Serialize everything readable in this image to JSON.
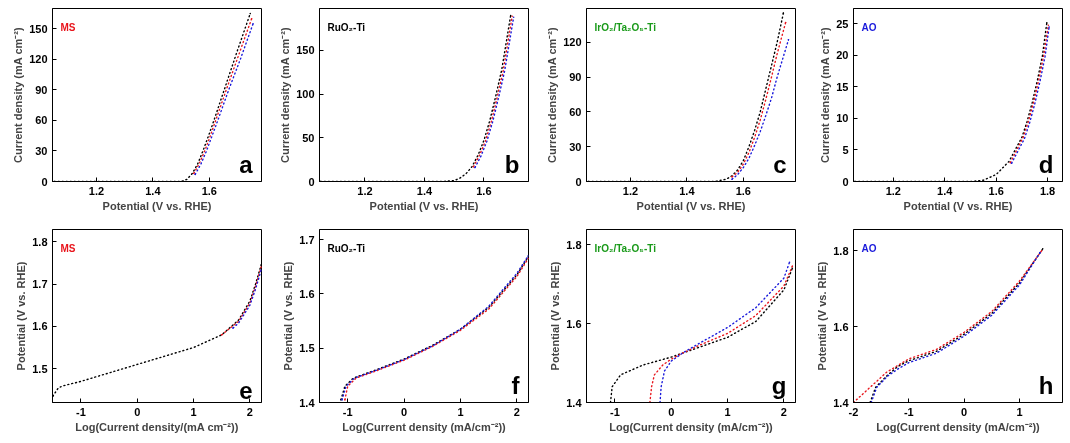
{
  "chart_data": [
    {
      "type": "line",
      "title": "MS",
      "annotations": [
        "a"
      ],
      "xlabel": "Potential (V vs. RHE)",
      "ylabel": "Current density (mA cm⁻²)",
      "xlim": [
        1.044,
        1.785
      ],
      "xticks": [
        1.2,
        1.4,
        1.6
      ],
      "ylim": [
        0,
        170
      ],
      "yticks": [
        0,
        30,
        60,
        90,
        120,
        150
      ],
      "line_style": "dotted",
      "series": [
        {
          "color": "#000000",
          "x": [
            1.05,
            1.45,
            1.5,
            1.52,
            1.54,
            1.56,
            1.58,
            1.6,
            1.62,
            1.66,
            1.7,
            1.745
          ],
          "values": [
            0,
            0,
            0,
            2,
            8,
            18,
            32,
            47,
            63,
            96,
            129,
            165
          ]
        },
        {
          "color": "#e8141b",
          "x": [
            1.545,
            1.565,
            1.585,
            1.605,
            1.625,
            1.665,
            1.705,
            1.75
          ],
          "values": [
            8,
            18,
            31,
            46,
            62,
            94,
            125,
            160
          ]
        },
        {
          "color": "#1a1adb",
          "x": [
            1.55,
            1.57,
            1.59,
            1.61,
            1.63,
            1.67,
            1.71,
            1.755
          ],
          "values": [
            7,
            17,
            30,
            45,
            60,
            91,
            120,
            155
          ]
        }
      ]
    },
    {
      "type": "line",
      "title": "RuO₂-Ti",
      "annotations": [
        "b"
      ],
      "xlabel": "Potential (V vs. RHE)",
      "ylabel": "Current density (mA cm⁻²)",
      "xlim": [
        1.047,
        1.75
      ],
      "xticks": [
        1.2,
        1.4,
        1.6
      ],
      "ylim": [
        0,
        198
      ],
      "yticks": [
        0,
        50,
        100,
        150
      ],
      "line_style": "dotted",
      "series": [
        {
          "color": "#000000",
          "x": [
            1.05,
            1.46,
            1.5,
            1.52,
            1.54,
            1.56,
            1.58,
            1.6,
            1.62,
            1.64,
            1.66,
            1.69
          ],
          "values": [
            0,
            0,
            1,
            4,
            9,
            17,
            30,
            47,
            70,
            98,
            128,
            190
          ]
        },
        {
          "color": "#e8141b",
          "x": [
            1.565,
            1.585,
            1.605,
            1.625,
            1.645,
            1.665,
            1.695
          ],
          "values": [
            17,
            30,
            46,
            69,
            97,
            127,
            189
          ]
        },
        {
          "color": "#1a1adb",
          "x": [
            1.57,
            1.59,
            1.61,
            1.63,
            1.65,
            1.67,
            1.7
          ],
          "values": [
            16,
            29,
            46,
            69,
            97,
            127,
            188
          ]
        }
      ]
    },
    {
      "type": "line",
      "title": "IrO₂/Ta₂O₅-Ti",
      "annotations": [
        "c"
      ],
      "xlabel": "Potential (V vs. RHE)",
      "ylabel": "Current density (mA cm⁻²)",
      "xlim": [
        1.044,
        1.785
      ],
      "xticks": [
        1.2,
        1.4,
        1.6
      ],
      "ylim": [
        0,
        149
      ],
      "yticks": [
        0,
        30,
        60,
        90,
        120
      ],
      "line_style": "dotted",
      "series": [
        {
          "color": "#000000",
          "x": [
            1.05,
            1.5,
            1.54,
            1.56,
            1.58,
            1.6,
            1.62,
            1.64,
            1.66,
            1.68,
            1.7,
            1.72,
            1.742
          ],
          "values": [
            0,
            0,
            2,
            5,
            10,
            18,
            30,
            44,
            60,
            80,
            100,
            120,
            145
          ]
        },
        {
          "color": "#e8141b",
          "x": [
            1.56,
            1.58,
            1.6,
            1.62,
            1.64,
            1.66,
            1.68,
            1.7,
            1.72,
            1.75
          ],
          "values": [
            4,
            8,
            15,
            25,
            38,
            53,
            71,
            90,
            110,
            137
          ]
        },
        {
          "color": "#1a1adb",
          "x": [
            1.56,
            1.58,
            1.6,
            1.62,
            1.64,
            1.66,
            1.68,
            1.7,
            1.72,
            1.76
          ],
          "values": [
            2,
            6,
            12,
            20,
            31,
            43,
            57,
            72,
            90,
            122
          ]
        }
      ]
    },
    {
      "type": "line",
      "title": "AO",
      "annotations": [
        "d"
      ],
      "xlabel": "Potential (V vs. RHE)",
      "ylabel": "Current density (mA cm⁻²)",
      "xlim": [
        1.045,
        1.858
      ],
      "xticks": [
        1.2,
        1.4,
        1.6,
        1.8
      ],
      "ylim": [
        0,
        27.45
      ],
      "yticks": [
        0,
        5,
        10,
        15,
        20,
        25
      ],
      "line_style": "dotted",
      "series": [
        {
          "color": "#000000",
          "x": [
            1.05,
            1.5,
            1.55,
            1.6,
            1.65,
            1.7,
            1.72,
            1.74,
            1.76,
            1.78,
            1.797
          ],
          "values": [
            0,
            0,
            0.2,
            1.1,
            3.2,
            7,
            9.5,
            12.5,
            16,
            20,
            25.2
          ]
        },
        {
          "color": "#e8141b",
          "x": [
            1.655,
            1.705,
            1.725,
            1.745,
            1.765,
            1.785,
            1.803
          ],
          "values": [
            3,
            7,
            9.5,
            12.5,
            16,
            20,
            24.8
          ]
        },
        {
          "color": "#1a1adb",
          "x": [
            1.66,
            1.71,
            1.73,
            1.75,
            1.77,
            1.79,
            1.806
          ],
          "values": [
            2.9,
            6.8,
            9.3,
            12.3,
            15.8,
            19.8,
            24.5
          ]
        }
      ]
    },
    {
      "type": "line",
      "title": "MS",
      "annotations": [
        "e"
      ],
      "xlabel": "Log(Current density/(mA cm⁻²))",
      "ylabel": "Potential (V vs. RHE)",
      "xlim": [
        -1.506,
        2.206
      ],
      "xticks": [
        -1,
        0,
        1,
        2
      ],
      "ylim": [
        1.42,
        1.829
      ],
      "yticks": [
        1.5,
        1.6,
        1.7,
        1.8
      ],
      "line_style": "dotted",
      "series": [
        {
          "color": "#000000",
          "x": [
            -1.5,
            -1.45,
            -1.4,
            -1.3,
            -1,
            0,
            1,
            1.5,
            1.8,
            2.0,
            2.1,
            2.2
          ],
          "values": [
            1.435,
            1.445,
            1.455,
            1.46,
            1.47,
            1.51,
            1.55,
            1.58,
            1.615,
            1.66,
            1.7,
            1.745
          ]
        },
        {
          "color": "#e8141b",
          "x": [
            1.5,
            1.8,
            2.0,
            2.1,
            2.2
          ],
          "values": [
            1.58,
            1.612,
            1.655,
            1.695,
            1.74
          ]
        },
        {
          "color": "#1a1adb",
          "x": [
            1.7,
            1.8,
            2.0,
            2.1,
            2.2
          ],
          "values": [
            1.596,
            1.608,
            1.65,
            1.688,
            1.733
          ]
        }
      ]
    },
    {
      "type": "line",
      "title": "RuO₂-Ti",
      "annotations": [
        "f"
      ],
      "xlabel": "Log(Current density (mA/cm⁻²))",
      "ylabel": "Potential (V vs. RHE)",
      "xlim": [
        -1.5,
        2.206
      ],
      "xticks": [
        -1,
        0,
        1,
        2
      ],
      "ylim": [
        1.4,
        1.7186
      ],
      "yticks": [
        1.4,
        1.5,
        1.6,
        1.7
      ],
      "line_style": "dotted",
      "series": [
        {
          "color": "#000000",
          "x": [
            -1.12,
            -1.05,
            -0.9,
            -0.5,
            0,
            0.5,
            1,
            1.5,
            2,
            2.2
          ],
          "values": [
            1.405,
            1.43,
            1.445,
            1.46,
            1.48,
            1.505,
            1.535,
            1.575,
            1.635,
            1.668
          ]
        },
        {
          "color": "#e8141b",
          "x": [
            -1.05,
            -1.0,
            -0.85,
            -0.5,
            0,
            0.5,
            1,
            1.5,
            2,
            2.2
          ],
          "values": [
            1.405,
            1.43,
            1.445,
            1.458,
            1.478,
            1.503,
            1.533,
            1.572,
            1.632,
            1.665
          ]
        },
        {
          "color": "#1a1adb",
          "x": [
            -1.1,
            -1.03,
            -0.88,
            -0.5,
            0,
            0.5,
            1,
            1.5,
            2,
            2.2
          ],
          "values": [
            1.405,
            1.43,
            1.445,
            1.459,
            1.479,
            1.504,
            1.535,
            1.577,
            1.638,
            1.67
          ]
        }
      ]
    },
    {
      "type": "line",
      "title": "IrO₂/Ta₂O₅-Ti",
      "annotations": [
        "g"
      ],
      "xlabel": "Log(Current density (mA/cm⁻²))",
      "ylabel": "Potential (V vs. RHE)",
      "xlim": [
        -1.506,
        2.206
      ],
      "xticks": [
        -1,
        0,
        1,
        2
      ],
      "ylim": [
        1.4,
        1.838
      ],
      "yticks": [
        1.4,
        1.6,
        1.8
      ],
      "line_style": "dotted",
      "series": [
        {
          "color": "#000000",
          "x": [
            -1.08,
            -1.05,
            -0.9,
            -0.5,
            0,
            0.2,
            0.5,
            1,
            1.5,
            2,
            2.15
          ],
          "values": [
            1.4,
            1.44,
            1.47,
            1.495,
            1.515,
            1.525,
            1.54,
            1.565,
            1.605,
            1.685,
            1.74
          ]
        },
        {
          "color": "#e8141b",
          "x": [
            -0.38,
            -0.35,
            -0.3,
            -0.15,
            0,
            0.2,
            0.5,
            1,
            1.5,
            2,
            2.15
          ],
          "values": [
            1.4,
            1.44,
            1.47,
            1.495,
            1.51,
            1.525,
            1.545,
            1.575,
            1.62,
            1.695,
            1.745
          ]
        },
        {
          "color": "#1a1adb",
          "x": [
            -0.2,
            -0.18,
            -0.12,
            0,
            0.2,
            0.5,
            1,
            1.5,
            2,
            2.1
          ],
          "values": [
            1.4,
            1.44,
            1.48,
            1.505,
            1.525,
            1.55,
            1.59,
            1.64,
            1.715,
            1.755
          ]
        }
      ]
    },
    {
      "type": "line",
      "title": "AO",
      "annotations": [
        "h"
      ],
      "xlabel": "Log(Current density (mA/cm⁻²))",
      "ylabel": "Potential (V vs. RHE)",
      "xlim": [
        -2,
        1.777
      ],
      "xticks": [
        -2,
        -1,
        0,
        1
      ],
      "ylim": [
        1.4,
        1.856
      ],
      "yticks": [
        1.4,
        1.6,
        1.8
      ],
      "line_style": "dotted",
      "series": [
        {
          "color": "#000000",
          "x": [
            -1.7,
            -1.6,
            -1.4,
            -1.2,
            -1,
            -0.5,
            0,
            0.5,
            1,
            1.42
          ],
          "values": [
            1.4,
            1.44,
            1.47,
            1.495,
            1.51,
            1.535,
            1.58,
            1.635,
            1.715,
            1.805
          ]
        },
        {
          "color": "#e8141b",
          "x": [
            -2,
            -1.7,
            -1.4,
            -1,
            -0.5,
            0,
            0.5,
            1,
            1.4
          ],
          "values": [
            1.4,
            1.44,
            1.48,
            1.515,
            1.54,
            1.585,
            1.64,
            1.72,
            1.8
          ]
        },
        {
          "color": "#1a1adb",
          "x": [
            -1.68,
            -1.58,
            -1.38,
            -1.18,
            -1,
            -0.5,
            0,
            0.5,
            1,
            1.37
          ],
          "values": [
            1.4,
            1.44,
            1.47,
            1.49,
            1.505,
            1.53,
            1.575,
            1.63,
            1.71,
            1.795
          ]
        }
      ]
    }
  ]
}
